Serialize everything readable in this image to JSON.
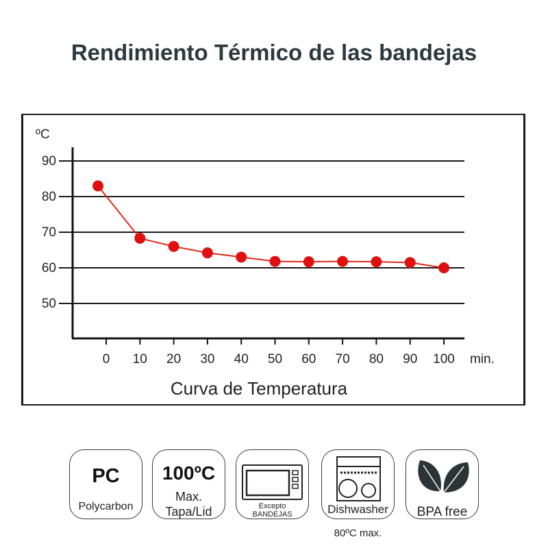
{
  "page": {
    "title": "Rendimiento Térmico de las bandejas"
  },
  "chart_data": {
    "type": "line",
    "title": "",
    "xlabel": "Curva de Temperatura",
    "x_unit": "min.",
    "y_unit": "ºC",
    "x": [
      0,
      10,
      20,
      30,
      40,
      50,
      60,
      70,
      80,
      90,
      100
    ],
    "series": [
      {
        "values": [
          83,
          68.3,
          66,
          64.2,
          63,
          61.8,
          61.7,
          61.8,
          61.7,
          61.5,
          60
        ]
      }
    ],
    "x_ticks": [
      "0",
      "10",
      "20",
      "30",
      "40",
      "50",
      "60",
      "70",
      "80",
      "90",
      "100"
    ],
    "y_ticks": [
      "50",
      "60",
      "70",
      "80",
      "90"
    ],
    "y_tick_values": [
      50,
      60,
      70,
      80,
      90
    ],
    "xlim": [
      -2.5,
      103
    ],
    "ylim": [
      40,
      95
    ],
    "grid": true,
    "line_color": "#e02818",
    "marker_color": "#e01010",
    "grid_color": "#1a1a1a"
  },
  "icons": {
    "pc": {
      "big": "PC",
      "sub": "Polycarbon"
    },
    "temp": {
      "big": "100ºC",
      "line1": "Max.",
      "line2": "Tapa/Lid"
    },
    "microwave": {
      "line1": "Excepto",
      "line2": "BANDEJAS",
      "icon": "microwave-icon"
    },
    "dishwasher": {
      "label": "Dishwasher",
      "note": "80ºC max.",
      "icon": "dishwasher-icon"
    },
    "bpa": {
      "label": "BPA free",
      "icon": "leaves-icon"
    }
  }
}
